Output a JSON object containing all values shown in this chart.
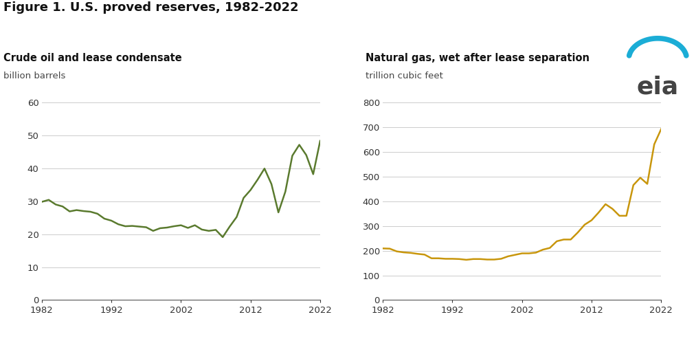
{
  "title": "Figure 1. U.S. proved reserves, 1982-2022",
  "title_fontsize": 13,
  "left_subtitle": "Crude oil and lease condensate",
  "left_unit": "billion barrels",
  "right_subtitle": "Natural gas, wet after lease separation",
  "right_unit": "trillion cubic feet",
  "oil_color": "#5a7a2e",
  "gas_color": "#c8960c",
  "background": "#ffffff",
  "grid_color": "#cccccc",
  "left_ylim": [
    0,
    60
  ],
  "left_yticks": [
    0,
    10,
    20,
    30,
    40,
    50,
    60
  ],
  "right_ylim": [
    0,
    800
  ],
  "right_yticks": [
    0,
    100,
    200,
    300,
    400,
    500,
    600,
    700,
    800
  ],
  "oil_years": [
    1982,
    1983,
    1984,
    1985,
    1986,
    1987,
    1988,
    1989,
    1990,
    1991,
    1992,
    1993,
    1994,
    1995,
    1996,
    1997,
    1998,
    1999,
    2000,
    2001,
    2002,
    2003,
    2004,
    2005,
    2006,
    2007,
    2008,
    2009,
    2010,
    2011,
    2012,
    2013,
    2014,
    2015,
    2016,
    2017,
    2018,
    2019,
    2020,
    2021,
    2022
  ],
  "oil_values": [
    29.8,
    30.4,
    29.0,
    28.4,
    26.9,
    27.3,
    27.0,
    26.8,
    26.2,
    24.7,
    24.1,
    23.0,
    22.4,
    22.5,
    22.3,
    22.1,
    21.0,
    21.8,
    22.0,
    22.4,
    22.7,
    21.9,
    22.7,
    21.4,
    21.0,
    21.3,
    19.1,
    22.3,
    25.2,
    31.0,
    33.4,
    36.5,
    39.9,
    35.2,
    26.6,
    32.9,
    43.8,
    47.1,
    44.0,
    38.2,
    48.3
  ],
  "gas_years": [
    1982,
    1983,
    1984,
    1985,
    1986,
    1987,
    1988,
    1989,
    1990,
    1991,
    1992,
    1993,
    1994,
    1995,
    1996,
    1997,
    1998,
    1999,
    2000,
    2001,
    2002,
    2003,
    2004,
    2005,
    2006,
    2007,
    2008,
    2009,
    2010,
    2011,
    2012,
    2013,
    2014,
    2015,
    2016,
    2017,
    2018,
    2019,
    2020,
    2021,
    2022
  ],
  "gas_values": [
    209,
    208,
    197,
    193,
    191,
    187,
    184,
    169,
    169,
    167,
    167,
    166,
    163,
    166,
    166,
    164,
    164,
    167,
    177,
    183,
    189,
    189,
    192,
    204,
    211,
    238,
    245,
    245,
    273,
    305,
    323,
    354,
    388,
    369,
    341,
    341,
    465,
    495,
    470,
    630,
    692
  ],
  "eia_text_color": "#444444",
  "eia_arc_color": "#1badd6",
  "eia_fontsize": 26
}
